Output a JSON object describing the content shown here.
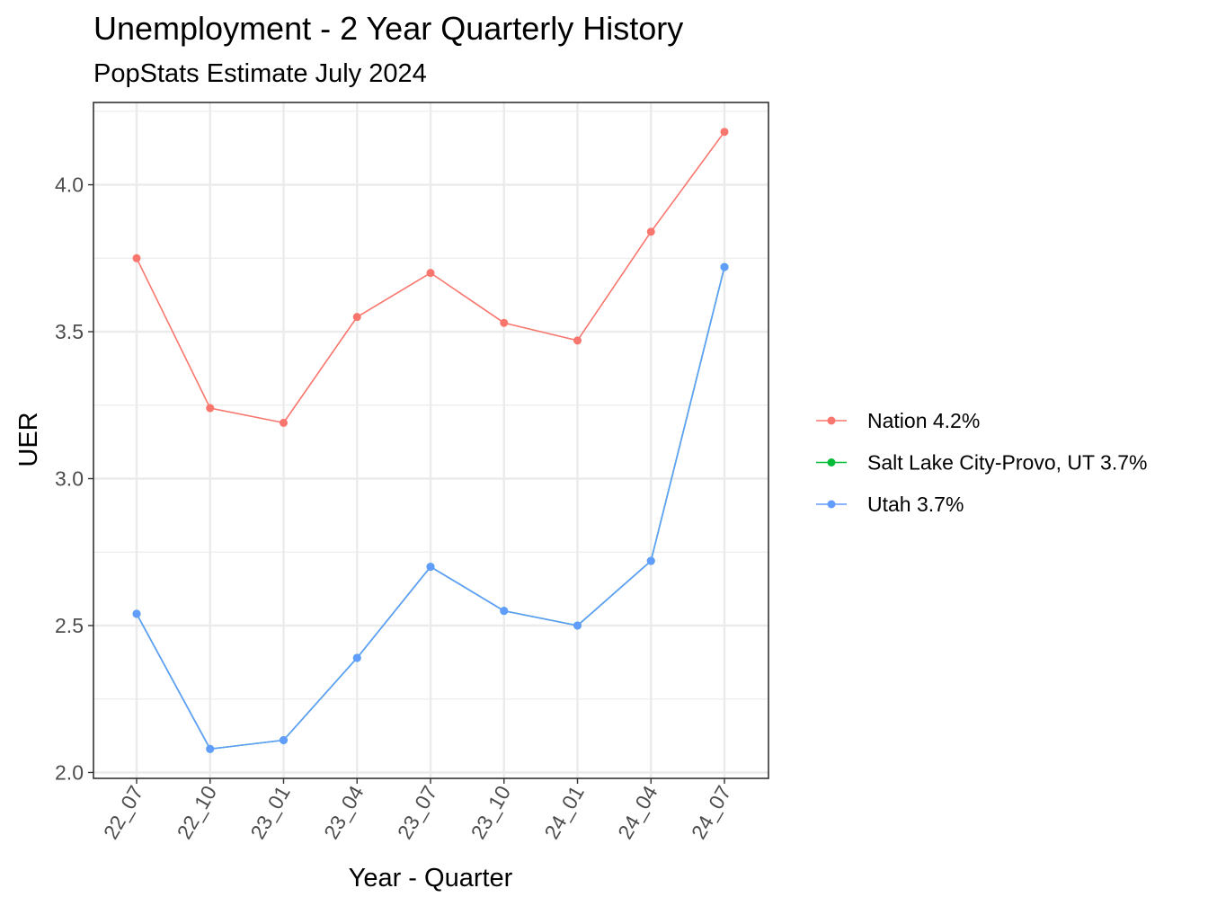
{
  "chart_data": {
    "type": "line",
    "title": "Unemployment - 2 Year Quarterly History",
    "subtitle": "PopStats Estimate July 2024",
    "xlabel": "Year - Quarter",
    "ylabel": "UER",
    "categories": [
      "22_07",
      "22_10",
      "23_01",
      "23_04",
      "23_07",
      "23_10",
      "24_01",
      "24_04",
      "24_07"
    ],
    "ylim": [
      1.98,
      4.28
    ],
    "yticks": [
      2.0,
      2.5,
      3.0,
      3.5,
      4.0
    ],
    "ytick_labels": [
      "2.0",
      "2.5",
      "3.0",
      "3.5",
      "4.0"
    ],
    "x_tick_rotation": 60,
    "grid": true,
    "legend_position": "right",
    "series": [
      {
        "name": "Nation 4.2%",
        "color": "#F8766D",
        "values": [
          3.75,
          3.24,
          3.19,
          3.55,
          3.7,
          3.53,
          3.47,
          3.84,
          4.18
        ]
      },
      {
        "name": "Salt Lake City-Provo, UT 3.7%",
        "color": "#00BA38",
        "values": [
          2.54,
          2.08,
          2.11,
          2.39,
          2.7,
          2.55,
          2.5,
          2.72,
          3.72
        ]
      },
      {
        "name": "Utah 3.7%",
        "color": "#619CFF",
        "values": [
          2.54,
          2.08,
          2.11,
          2.39,
          2.7,
          2.55,
          2.5,
          2.72,
          3.72
        ]
      }
    ]
  }
}
